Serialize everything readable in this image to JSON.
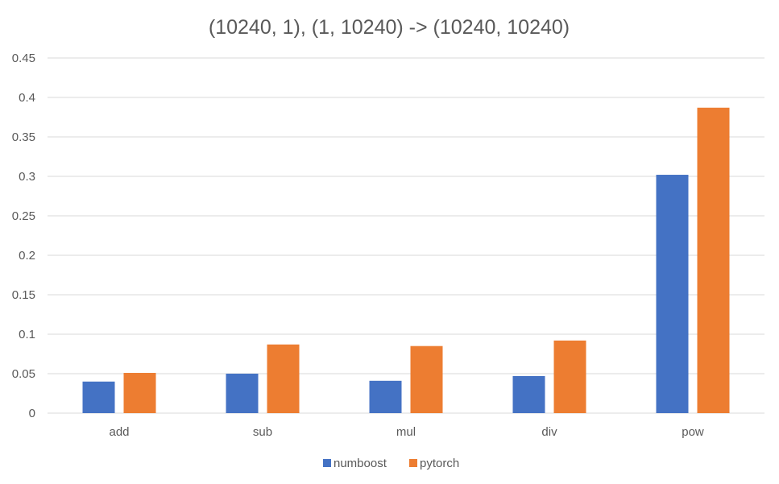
{
  "chart_data": {
    "type": "bar",
    "title": "(10240, 1), (1, 10240) -> (10240, 10240)",
    "xlabel": "",
    "ylabel": "",
    "categories": [
      "add",
      "sub",
      "mul",
      "div",
      "pow"
    ],
    "series": [
      {
        "name": "numboost",
        "color": "#4472C4",
        "values": [
          0.04,
          0.05,
          0.041,
          0.047,
          0.302
        ]
      },
      {
        "name": "pytorch",
        "color": "#ED7D31",
        "values": [
          0.051,
          0.087,
          0.085,
          0.092,
          0.387
        ]
      }
    ],
    "ylim": [
      0,
      0.45
    ],
    "yticks": [
      "0",
      "0.05",
      "0.1",
      "0.15",
      "0.2",
      "0.25",
      "0.3",
      "0.35",
      "0.4",
      "0.45"
    ],
    "grid": true,
    "legend_position": "bottom"
  }
}
